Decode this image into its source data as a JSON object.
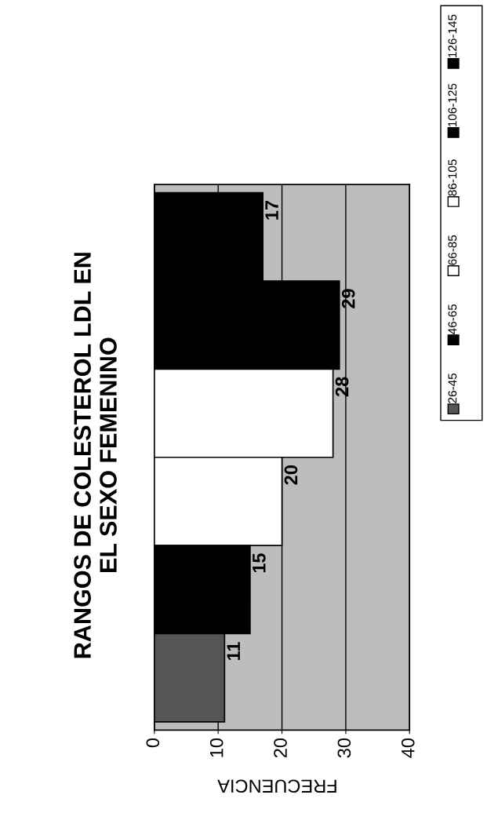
{
  "chart_data": {
    "type": "bar",
    "orientation": "horizontal",
    "title": "RANGOS DE COLESTEROL LDL EN\nEL SEXO FEMENINO",
    "xlabel": "FRECUENCIA",
    "categories": [
      null
    ],
    "series": [
      {
        "name": "126-145",
        "color": "#000000",
        "values": [
          17
        ]
      },
      {
        "name": "106-125",
        "color": "#000000",
        "values": [
          29
        ]
      },
      {
        "name": "86-105",
        "color": "#ffffff",
        "values": [
          28
        ]
      },
      {
        "name": "66-85",
        "color": "#ffffff",
        "values": [
          20
        ]
      },
      {
        "name": "46-65",
        "color": "#000000",
        "values": [
          15
        ]
      },
      {
        "name": "26-45",
        "color": "#555555",
        "values": [
          11
        ]
      }
    ],
    "xlim": [
      0,
      40
    ],
    "xticks": [
      0,
      10,
      20,
      30,
      40
    ],
    "grid": "x",
    "data_labels": true,
    "legend": "right"
  }
}
